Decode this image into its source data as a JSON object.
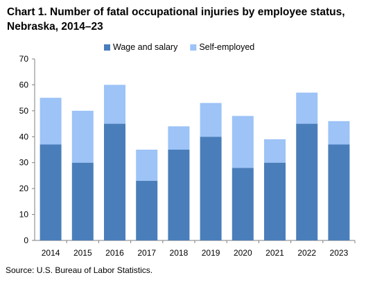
{
  "chart_data": {
    "type": "bar",
    "stacked": true,
    "title": "Chart 1. Number of fatal occupational injuries by employee status, Nebraska, 2014–23",
    "categories": [
      "2014",
      "2015",
      "2016",
      "2017",
      "2018",
      "2019",
      "2020",
      "2021",
      "2022",
      "2023"
    ],
    "series": [
      {
        "name": "Wage and salary",
        "color": "#4a7ebb",
        "values": [
          37,
          30,
          45,
          23,
          35,
          40,
          28,
          30,
          45,
          37
        ]
      },
      {
        "name": "Self-employed",
        "color": "#9dc3f7",
        "values": [
          18,
          20,
          15,
          12,
          9,
          13,
          20,
          9,
          12,
          9
        ]
      }
    ],
    "ylim": [
      0,
      70
    ],
    "yticks": [
      0,
      10,
      20,
      30,
      40,
      50,
      60,
      70
    ],
    "legend": "top-center",
    "grid": false,
    "xlabel": "",
    "ylabel": ""
  },
  "source": "Source: U.S. Bureau of Labor Statistics."
}
